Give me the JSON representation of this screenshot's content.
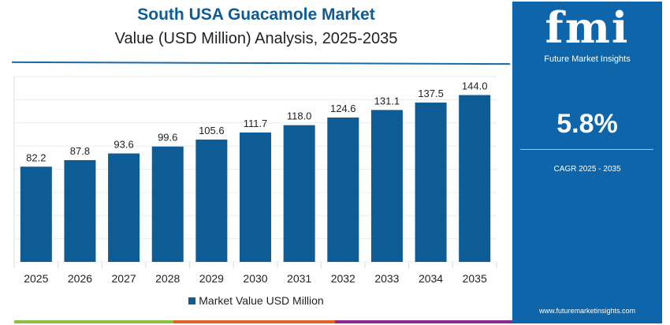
{
  "chart_data": {
    "type": "bar",
    "title": "South USA Guacamole Market",
    "subtitle": "Value (USD Million) Analysis, 2025-2035",
    "categories": [
      "2025",
      "2026",
      "2027",
      "2028",
      "2029",
      "2030",
      "2031",
      "2032",
      "2033",
      "2034",
      "2035"
    ],
    "series": [
      {
        "name": "Market Value USD Million",
        "values": [
          82.2,
          87.8,
          93.6,
          99.6,
          105.6,
          111.7,
          118.0,
          124.6,
          131.1,
          137.5,
          144.0
        ]
      }
    ],
    "ylim": [
      0,
      160
    ],
    "grid": true,
    "legend": "bottom",
    "bar_color": "#0e5c96"
  },
  "panel": {
    "logo": "fmi",
    "logo_text": "Future Market Insights",
    "cagr_value": "5.8%",
    "cagr_label": "CAGR 2025 - 2035",
    "url": "www.futuremarketinsights.com",
    "background": "#0e65aa"
  },
  "bottom_bar_colors": [
    "#8cbf3f",
    "#e0622a",
    "#8a2a8f"
  ]
}
